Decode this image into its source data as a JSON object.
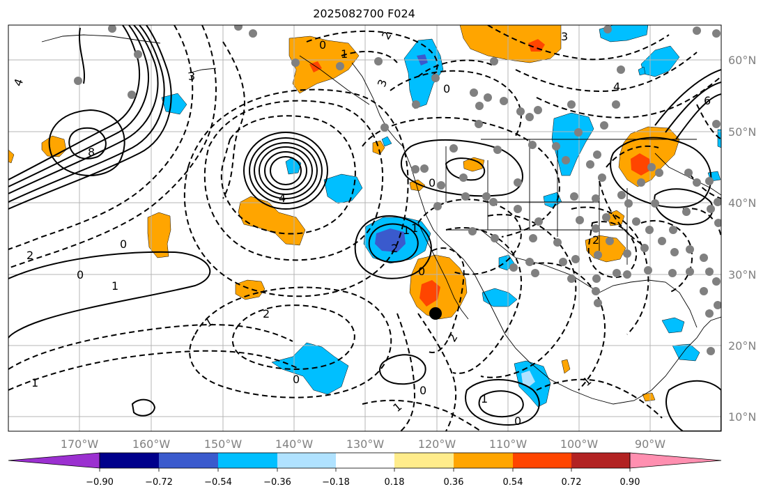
{
  "title": "2025082700 F024",
  "longitude_labels": [
    "170°W",
    "160°W",
    "150°W",
    "140°W",
    "130°W",
    "120°W",
    "110°W",
    "100°W",
    "90°W"
  ],
  "latitude_labels": [
    "60°N",
    "50°N",
    "40°N",
    "30°N",
    "20°N",
    "10°N"
  ],
  "colorbar": {
    "ticks": [
      "−0.90",
      "−0.72",
      "−0.54",
      "−0.36",
      "−0.18",
      "0.18",
      "0.36",
      "0.54",
      "0.72",
      "0.90"
    ],
    "colors": [
      "#9b30d0",
      "#00008b",
      "#3a5acd",
      "#00bfff",
      "#b0e2ff",
      "#ffffff",
      "#ffec8b",
      "#ffa500",
      "#ff4500",
      "#b22222",
      "#ff8fb0"
    ]
  },
  "contour_labels": [
    "0",
    "1",
    "3",
    "4",
    "8",
    "2",
    "0",
    "4",
    "2",
    "1",
    "0",
    "2",
    "1",
    "1",
    "0",
    "0",
    "2",
    "2",
    "1",
    "1",
    "0",
    "0",
    "1",
    "4",
    "3",
    "0",
    "2",
    "1",
    "0",
    "3",
    "6",
    "1"
  ],
  "colors": {
    "blue": "#00bfff",
    "dark_blue": "#3a5acd",
    "orange": "#ffa500",
    "red": "#ff4500",
    "grid": "#b4b4b4",
    "station": "#808080"
  }
}
